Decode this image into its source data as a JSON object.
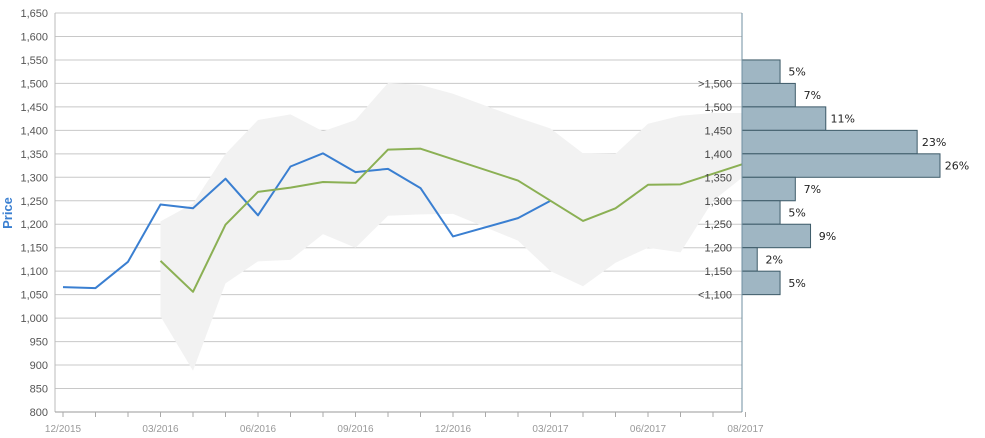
{
  "chart_data": {
    "type": "line",
    "ylabel": "Price",
    "ylim": [
      800,
      1650
    ],
    "yticks": [
      800,
      850,
      900,
      950,
      1000,
      1050,
      1100,
      1150,
      1200,
      1250,
      1300,
      1350,
      1400,
      1450,
      1500,
      1550,
      1600,
      1650
    ],
    "ytick_labels": [
      "800",
      "850",
      "900",
      "950",
      "1,000",
      "1,050",
      "1,100",
      "1,150",
      "1,200",
      "1,250",
      "1,300",
      "1,350",
      "1,400",
      "1,450",
      "1,500",
      "1,550",
      "1,600",
      "1,650"
    ],
    "x_labels": [
      {
        "month": 0,
        "label": "12/2015"
      },
      {
        "month": 3,
        "label": "03/2016"
      },
      {
        "month": 6,
        "label": "06/2016"
      },
      {
        "month": 9,
        "label": "09/2016"
      },
      {
        "month": 12,
        "label": "12/2016"
      },
      {
        "month": 15,
        "label": "03/2017"
      },
      {
        "month": 18,
        "label": "06/2017"
      },
      {
        "month": 21,
        "label": "08/2017"
      }
    ],
    "x_minor_months": [
      0,
      1,
      2,
      3,
      4,
      5,
      6,
      7,
      8,
      9,
      10,
      11,
      12,
      13,
      14,
      15,
      16,
      17,
      18,
      19,
      20,
      21
    ],
    "series": [
      {
        "color": "#3a7fd1",
        "points": [
          {
            "month": 0,
            "value": 1066
          },
          {
            "month": 1,
            "value": 1064
          },
          {
            "month": 2,
            "value": 1120
          },
          {
            "month": 3,
            "value": 1242
          },
          {
            "month": 4,
            "value": 1234
          },
          {
            "month": 5,
            "value": 1297
          },
          {
            "month": 6,
            "value": 1219
          },
          {
            "month": 7,
            "value": 1323
          },
          {
            "month": 8,
            "value": 1351
          },
          {
            "month": 9,
            "value": 1311
          },
          {
            "month": 10,
            "value": 1318
          },
          {
            "month": 11,
            "value": 1277
          },
          {
            "month": 12,
            "value": 1174
          },
          {
            "month": 14,
            "value": 1213
          },
          {
            "month": 15,
            "value": 1250
          }
        ]
      },
      {
        "color": "#8bb054",
        "points": [
          {
            "month": 3,
            "value": 1122
          },
          {
            "month": 4,
            "value": 1056
          },
          {
            "month": 5,
            "value": 1199
          },
          {
            "month": 6,
            "value": 1269
          },
          {
            "month": 7,
            "value": 1278
          },
          {
            "month": 8,
            "value": 1290
          },
          {
            "month": 9,
            "value": 1288
          },
          {
            "month": 10,
            "value": 1359
          },
          {
            "month": 11,
            "value": 1361
          },
          {
            "month": 14,
            "value": 1293
          },
          {
            "month": 16,
            "value": 1207
          },
          {
            "month": 17,
            "value": 1234
          },
          {
            "month": 18,
            "value": 1284
          },
          {
            "month": 19,
            "value": 1285
          },
          {
            "month": 21,
            "value": 1330
          }
        ]
      }
    ],
    "band": {
      "color": "#f2f2f2",
      "upper": [
        {
          "month": 3,
          "value": 1206
        },
        {
          "month": 4,
          "value": 1244
        },
        {
          "month": 5,
          "value": 1350
        },
        {
          "month": 6,
          "value": 1422
        },
        {
          "month": 7,
          "value": 1434
        },
        {
          "month": 8,
          "value": 1398
        },
        {
          "month": 9,
          "value": 1422
        },
        {
          "month": 10,
          "value": 1501
        },
        {
          "month": 11,
          "value": 1497
        },
        {
          "month": 12,
          "value": 1478
        },
        {
          "month": 14,
          "value": 1427
        },
        {
          "month": 15,
          "value": 1404
        },
        {
          "month": 16,
          "value": 1351
        },
        {
          "month": 17,
          "value": 1350
        },
        {
          "month": 18,
          "value": 1414
        },
        {
          "month": 19,
          "value": 1431
        },
        {
          "month": 20,
          "value": 1437
        },
        {
          "month": 21,
          "value": 1437
        }
      ],
      "lower": [
        {
          "month": 21,
          "value": 1305
        },
        {
          "month": 20,
          "value": 1250
        },
        {
          "month": 19,
          "value": 1140
        },
        {
          "month": 18,
          "value": 1150
        },
        {
          "month": 17,
          "value": 1118
        },
        {
          "month": 16,
          "value": 1068
        },
        {
          "month": 15,
          "value": 1100
        },
        {
          "month": 14,
          "value": 1165
        },
        {
          "month": 12,
          "value": 1222
        },
        {
          "month": 11,
          "value": 1221
        },
        {
          "month": 10,
          "value": 1218
        },
        {
          "month": 9,
          "value": 1150
        },
        {
          "month": 8,
          "value": 1179
        },
        {
          "month": 7,
          "value": 1124
        },
        {
          "month": 6,
          "value": 1121
        },
        {
          "month": 5,
          "value": 1074
        },
        {
          "month": 4,
          "value": 888
        },
        {
          "month": 3,
          "value": 1004
        }
      ]
    },
    "histogram": {
      "color": "#9fb6c3",
      "stroke": "#3d5a68",
      "max_pct": 26,
      "bins": [
        {
          "label": ">1,500",
          "from": 1500,
          "to": 1550,
          "pct": 5,
          "pct_label": "5%"
        },
        {
          "label": "1,500",
          "from": 1450,
          "to": 1500,
          "pct": 7,
          "pct_label": "7%"
        },
        {
          "label": "1,450",
          "from": 1400,
          "to": 1450,
          "pct": 11,
          "pct_label": "11%"
        },
        {
          "label": "1,400",
          "from": 1350,
          "to": 1400,
          "pct": 23,
          "pct_label": "23%"
        },
        {
          "label": "1,350",
          "from": 1300,
          "to": 1350,
          "pct": 26,
          "pct_label": "26%"
        },
        {
          "label": "1,300",
          "from": 1250,
          "to": 1300,
          "pct": 7,
          "pct_label": "7%"
        },
        {
          "label": "1,250",
          "from": 1200,
          "to": 1250,
          "pct": 5,
          "pct_label": "5%"
        },
        {
          "label": "1,200",
          "from": 1150,
          "to": 1200,
          "pct": 9,
          "pct_label": "9%"
        },
        {
          "label": "1,150",
          "from": 1100,
          "to": 1150,
          "pct": 2,
          "pct_label": "2%"
        },
        {
          "label": "<1,100",
          "from": 1050,
          "to": 1100,
          "pct": 5,
          "pct_label": "5%"
        }
      ]
    },
    "grid": true
  }
}
